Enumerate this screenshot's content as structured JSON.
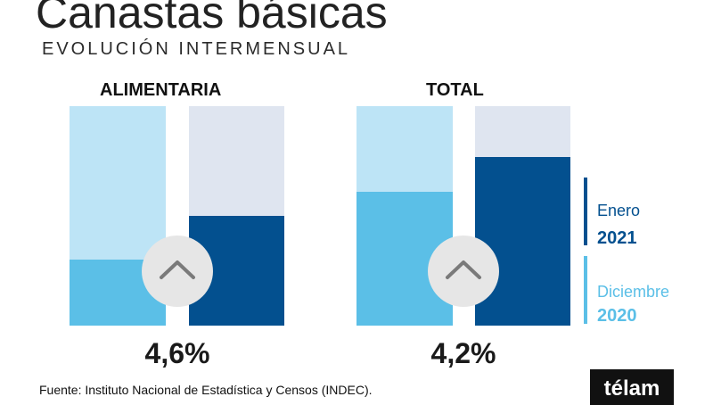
{
  "header": {
    "title": "Canastas básicas",
    "subtitle": "EVOLUCIÓN INTERMENSUAL"
  },
  "colors": {
    "enero_2021": "#03508f",
    "enero_2021_bg": "#dfe5f0",
    "diciembre_2020": "#5bbfe7",
    "diciembre_2020_bg": "#bde4f6",
    "badge": "#e6e6e6",
    "arrow": "#7a7a7a"
  },
  "chart_data": {
    "type": "bar",
    "ylim": [
      0,
      100
    ],
    "groups": [
      {
        "title": "ALIMENTARIA",
        "headline": "4,6%",
        "bars": [
          {
            "series": "Diciembre 2020",
            "fill_pct": 30
          },
          {
            "series": "Enero 2021",
            "fill_pct": 50
          }
        ]
      },
      {
        "title": "TOTAL",
        "headline": "4,2%",
        "bars": [
          {
            "series": "Diciembre 2020",
            "fill_pct": 61
          },
          {
            "series": "Enero 2021",
            "fill_pct": 77
          }
        ]
      }
    ],
    "legend": [
      {
        "month": "Enero",
        "year": "2021"
      },
      {
        "month": "Diciembre",
        "year": "2020"
      }
    ]
  },
  "footer": {
    "source": "Fuente: Instituto Nacional de Estadística y Censos (INDEC).",
    "logo": "télam"
  }
}
